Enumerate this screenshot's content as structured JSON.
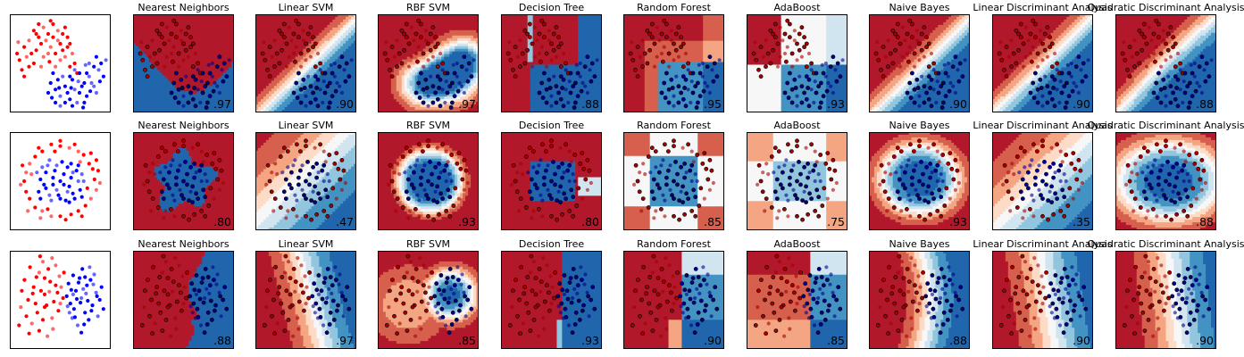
{
  "figure": {
    "palette": {
      "red": [
        "#b2182b",
        "#d6604d",
        "#f4a582",
        "#fddbc7"
      ],
      "neutral": "#f7f7f7",
      "blue": [
        "#d1e5f0",
        "#92c5de",
        "#4393c3",
        "#2166ac"
      ],
      "train_red": "#ff0000",
      "train_blue": "#0000ff",
      "test_alpha": 0.6
    },
    "classifiers": [
      "Nearest Neighbors",
      "Linear SVM",
      "RBF SVM",
      "Decision Tree",
      "Random Forest",
      "AdaBoost",
      "Naive Bayes",
      "Linear Discriminant Analysis",
      "Quadratic Discriminant Analysis"
    ]
  },
  "chart_data": [
    {
      "type": "scatter",
      "dataset": "moons",
      "xlim": [
        -1.6,
        2.6
      ],
      "ylim": [
        -1.2,
        1.8
      ],
      "scores": [
        ".97",
        ".90",
        ".97",
        ".88",
        ".95",
        ".93",
        ".90",
        ".90",
        ".88"
      ],
      "points": {
        "red": [
          [
            -1.2,
            0.4
          ],
          [
            -1.0,
            0.8
          ],
          [
            -0.8,
            1.0
          ],
          [
            -0.6,
            1.3
          ],
          [
            -0.4,
            1.1
          ],
          [
            -0.2,
            1.4
          ],
          [
            0.0,
            1.2
          ],
          [
            0.2,
            1.5
          ],
          [
            0.4,
            1.0
          ],
          [
            0.6,
            1.2
          ],
          [
            0.8,
            0.8
          ],
          [
            1.0,
            0.6
          ],
          [
            1.1,
            0.3
          ],
          [
            -1.1,
            0.1
          ],
          [
            -0.9,
            0.5
          ],
          [
            -0.5,
            0.7
          ],
          [
            -0.3,
            0.9
          ],
          [
            0.1,
            0.8
          ],
          [
            0.3,
            0.6
          ],
          [
            0.5,
            0.9
          ],
          [
            0.7,
            0.5
          ],
          [
            0.9,
            0.2
          ],
          [
            -0.7,
            0.6
          ],
          [
            -0.1,
            1.0
          ],
          [
            0.2,
            1.1
          ],
          [
            -0.4,
            1.5
          ],
          [
            0.0,
            0.6
          ],
          [
            1.2,
            0.0
          ],
          [
            -1.3,
            0.6
          ],
          [
            0.4,
            1.3
          ],
          [
            -0.6,
            0.3
          ],
          [
            0.6,
            0.7
          ],
          [
            -0.2,
            0.5
          ],
          [
            0.8,
            1.1
          ],
          [
            -0.8,
            0.2
          ],
          [
            0.3,
            0.2
          ],
          [
            -1.0,
            -0.1
          ],
          [
            0.1,
            1.6
          ],
          [
            0.5,
            0.4
          ],
          [
            -0.5,
            1.2
          ],
          [
            0.9,
            0.9
          ],
          [
            -0.3,
            0.2
          ],
          [
            0.7,
            1.4
          ],
          [
            0.05,
            0.35
          ],
          [
            -1.25,
            0.95
          ]
        ],
        "blue": [
          [
            0.1,
            -0.3
          ],
          [
            0.3,
            -0.5
          ],
          [
            0.5,
            -0.7
          ],
          [
            0.7,
            -0.4
          ],
          [
            0.9,
            -0.8
          ],
          [
            1.1,
            -0.5
          ],
          [
            1.3,
            -0.6
          ],
          [
            1.5,
            -0.3
          ],
          [
            1.7,
            -0.1
          ],
          [
            1.9,
            0.2
          ],
          [
            2.0,
            0.5
          ],
          [
            2.1,
            0.1
          ],
          [
            0.2,
            0.0
          ],
          [
            0.4,
            -0.2
          ],
          [
            0.6,
            -0.1
          ],
          [
            0.8,
            -0.6
          ],
          [
            1.0,
            -0.2
          ],
          [
            1.2,
            -0.9
          ],
          [
            1.4,
            -0.4
          ],
          [
            1.6,
            -0.7
          ],
          [
            1.8,
            -0.3
          ],
          [
            2.2,
            0.3
          ],
          [
            0.0,
            -0.6
          ],
          [
            0.5,
            -1.0
          ],
          [
            1.0,
            -1.0
          ],
          [
            1.5,
            -0.9
          ],
          [
            1.7,
            0.3
          ],
          [
            1.3,
            0.0
          ],
          [
            0.9,
            -0.1
          ],
          [
            1.9,
            -0.4
          ],
          [
            0.3,
            -0.9
          ],
          [
            2.3,
            -0.1
          ],
          [
            1.1,
            0.1
          ],
          [
            0.7,
            -0.9
          ],
          [
            1.6,
            0.0
          ],
          [
            2.0,
            -0.6
          ],
          [
            0.15,
            -0.75
          ],
          [
            1.45,
            -1.05
          ],
          [
            2.4,
            0.4
          ],
          [
            0.95,
            -0.45
          ],
          [
            1.75,
            -0.55
          ],
          [
            1.25,
            -0.25
          ],
          [
            0.45,
            -0.45
          ],
          [
            2.15,
            -0.25
          ],
          [
            1.55,
            0.25
          ]
        ]
      }
    },
    {
      "type": "scatter",
      "dataset": "circles",
      "xlim": [
        -1.4,
        1.4
      ],
      "ylim": [
        -1.4,
        1.4
      ],
      "scores": [
        ".80",
        ".47",
        ".93",
        ".80",
        ".85",
        ".75",
        ".93",
        ".35",
        ".88"
      ],
      "points": {
        "red": [
          [
            0.95,
            0.05
          ],
          [
            0.8,
            0.5
          ],
          [
            0.5,
            0.85
          ],
          [
            0.0,
            1.0
          ],
          [
            -0.5,
            0.85
          ],
          [
            -0.85,
            0.5
          ],
          [
            -1.0,
            0.0
          ],
          [
            -0.85,
            -0.5
          ],
          [
            -0.5,
            -0.85
          ],
          [
            0.0,
            -1.0
          ],
          [
            0.5,
            -0.85
          ],
          [
            0.85,
            -0.5
          ],
          [
            1.05,
            0.3
          ],
          [
            0.65,
            0.75
          ],
          [
            0.25,
            0.95
          ],
          [
            -0.25,
            1.05
          ],
          [
            -0.7,
            0.7
          ],
          [
            -0.95,
            0.25
          ],
          [
            -0.95,
            -0.3
          ],
          [
            -0.7,
            -0.75
          ],
          [
            -0.25,
            -1.0
          ],
          [
            0.3,
            -0.95
          ],
          [
            0.7,
            -0.7
          ],
          [
            1.0,
            -0.25
          ],
          [
            0.9,
            0.35
          ],
          [
            -0.6,
            0.95
          ],
          [
            -1.1,
            -0.1
          ],
          [
            0.15,
            -1.1
          ],
          [
            0.75,
            -0.2
          ],
          [
            -0.8,
            0.2
          ],
          [
            0.4,
            1.05
          ],
          [
            -0.35,
            -0.8
          ],
          [
            1.1,
            -0.05
          ],
          [
            -1.05,
            0.45
          ],
          [
            0.6,
            -1.0
          ],
          [
            -0.55,
            -1.05
          ],
          [
            0.0,
            1.15
          ],
          [
            0.85,
            0.8
          ],
          [
            -0.9,
            -0.85
          ],
          [
            1.0,
            0.6
          ],
          [
            -0.15,
            0.85
          ],
          [
            0.55,
            0.55
          ]
        ],
        "blue": [
          [
            0.3,
            0.1
          ],
          [
            0.2,
            0.4
          ],
          [
            -0.1,
            0.45
          ],
          [
            -0.4,
            0.25
          ],
          [
            -0.45,
            -0.1
          ],
          [
            -0.3,
            -0.4
          ],
          [
            0.0,
            -0.5
          ],
          [
            0.35,
            -0.35
          ],
          [
            0.5,
            0.0
          ],
          [
            0.1,
            0.2
          ],
          [
            -0.2,
            0.1
          ],
          [
            -0.1,
            -0.25
          ],
          [
            0.25,
            -0.15
          ],
          [
            0.45,
            0.3
          ],
          [
            -0.35,
            0.45
          ],
          [
            -0.55,
            0.05
          ],
          [
            0.15,
            -0.55
          ],
          [
            -0.25,
            -0.55
          ],
          [
            0.55,
            -0.25
          ],
          [
            0.05,
            0.55
          ],
          [
            0.6,
            0.2
          ],
          [
            -0.6,
            -0.3
          ],
          [
            0.3,
            0.5
          ],
          [
            -0.5,
            0.4
          ],
          [
            0.4,
            -0.5
          ],
          [
            0.0,
            0.0
          ],
          [
            0.2,
            -0.3
          ],
          [
            -0.15,
            0.3
          ],
          [
            0.6,
            -0.45
          ],
          [
            -0.65,
            0.25
          ],
          [
            0.1,
            -0.1
          ],
          [
            -0.4,
            -0.2
          ],
          [
            0.35,
            0.25
          ],
          [
            -0.05,
            -0.4
          ],
          [
            0.5,
            0.45
          ],
          [
            -0.3,
            0.6
          ],
          [
            0.25,
            -0.6
          ],
          [
            -0.55,
            -0.5
          ],
          [
            0.65,
            0.0
          ],
          [
            -0.2,
            -0.1
          ]
        ]
      }
    },
    {
      "type": "scatter",
      "dataset": "linearly separable",
      "xlim": [
        -2.5,
        3.0
      ],
      "ylim": [
        -2.2,
        3.2
      ],
      "scores": [
        ".88",
        ".97",
        ".85",
        ".93",
        ".90",
        ".85",
        ".88",
        ".90",
        ".90"
      ],
      "points": {
        "red": [
          [
            -1.5,
            0.5
          ],
          [
            -1.2,
            1.2
          ],
          [
            -0.9,
            2.0
          ],
          [
            -0.6,
            0.8
          ],
          [
            -0.3,
            1.5
          ],
          [
            0.0,
            2.4
          ],
          [
            -1.0,
            -0.2
          ],
          [
            -0.5,
            0.2
          ],
          [
            -0.2,
            -0.5
          ],
          [
            0.1,
            0.9
          ],
          [
            -1.7,
            1.6
          ],
          [
            -1.3,
            -0.8
          ],
          [
            -0.8,
            1.0
          ],
          [
            -0.4,
            2.2
          ],
          [
            0.2,
            1.8
          ],
          [
            -1.1,
            0.3
          ],
          [
            -0.7,
            -0.6
          ],
          [
            -1.9,
            0.1
          ],
          [
            -0.1,
            0.4
          ],
          [
            -0.6,
            1.7
          ],
          [
            0.3,
            1.2
          ],
          [
            -1.4,
            2.3
          ],
          [
            -0.9,
            -1.2
          ],
          [
            -0.2,
            2.8
          ],
          [
            0.4,
            0.6
          ],
          [
            -1.6,
            -0.4
          ],
          [
            -0.45,
            -1.5
          ],
          [
            0.0,
            1.3
          ],
          [
            -1.25,
            0.85
          ],
          [
            -0.7,
            2.6
          ],
          [
            0.15,
            -0.1
          ],
          [
            -1.85,
            1.0
          ],
          [
            -0.35,
            0.95
          ],
          [
            0.45,
            2.0
          ],
          [
            -1.05,
            1.75
          ],
          [
            -0.15,
            -1.1
          ],
          [
            -0.6,
            0.1
          ],
          [
            -2.0,
            -0.9
          ],
          [
            0.25,
            0.3
          ],
          [
            -0.85,
            2.9
          ],
          [
            -1.45,
            -1.35
          ]
        ],
        "blue": [
          [
            0.8,
            0.3
          ],
          [
            1.1,
            1.0
          ],
          [
            1.4,
            0.6
          ],
          [
            1.7,
            1.3
          ],
          [
            2.0,
            0.2
          ],
          [
            0.9,
            -0.5
          ],
          [
            1.3,
            1.7
          ],
          [
            1.6,
            -0.2
          ],
          [
            2.2,
            0.9
          ],
          [
            0.7,
            1.4
          ],
          [
            1.0,
            0.0
          ],
          [
            1.5,
            1.1
          ],
          [
            1.9,
            1.6
          ],
          [
            2.4,
            0.5
          ],
          [
            1.2,
            -0.9
          ],
          [
            0.6,
            0.7
          ],
          [
            1.8,
            -0.6
          ],
          [
            2.1,
            1.9
          ],
          [
            1.35,
            0.35
          ],
          [
            0.95,
            1.85
          ],
          [
            1.65,
            0.85
          ],
          [
            2.5,
            1.2
          ],
          [
            1.15,
            0.55
          ],
          [
            0.75,
            -0.2
          ],
          [
            1.95,
            -0.1
          ],
          [
            1.45,
            2.2
          ],
          [
            2.3,
            -0.4
          ],
          [
            0.85,
            1.05
          ],
          [
            1.55,
            -0.85
          ],
          [
            2.05,
            1.35
          ],
          [
            1.25,
            1.45
          ],
          [
            1.75,
            0.45
          ],
          [
            0.65,
            0.15
          ],
          [
            2.6,
            0.0
          ],
          [
            1.05,
            -0.45
          ],
          [
            1.85,
            2.3
          ],
          [
            1.4,
            -1.3
          ],
          [
            2.25,
            0.7
          ],
          [
            0.95,
            0.8
          ],
          [
            1.6,
            1.75
          ]
        ]
      }
    }
  ]
}
